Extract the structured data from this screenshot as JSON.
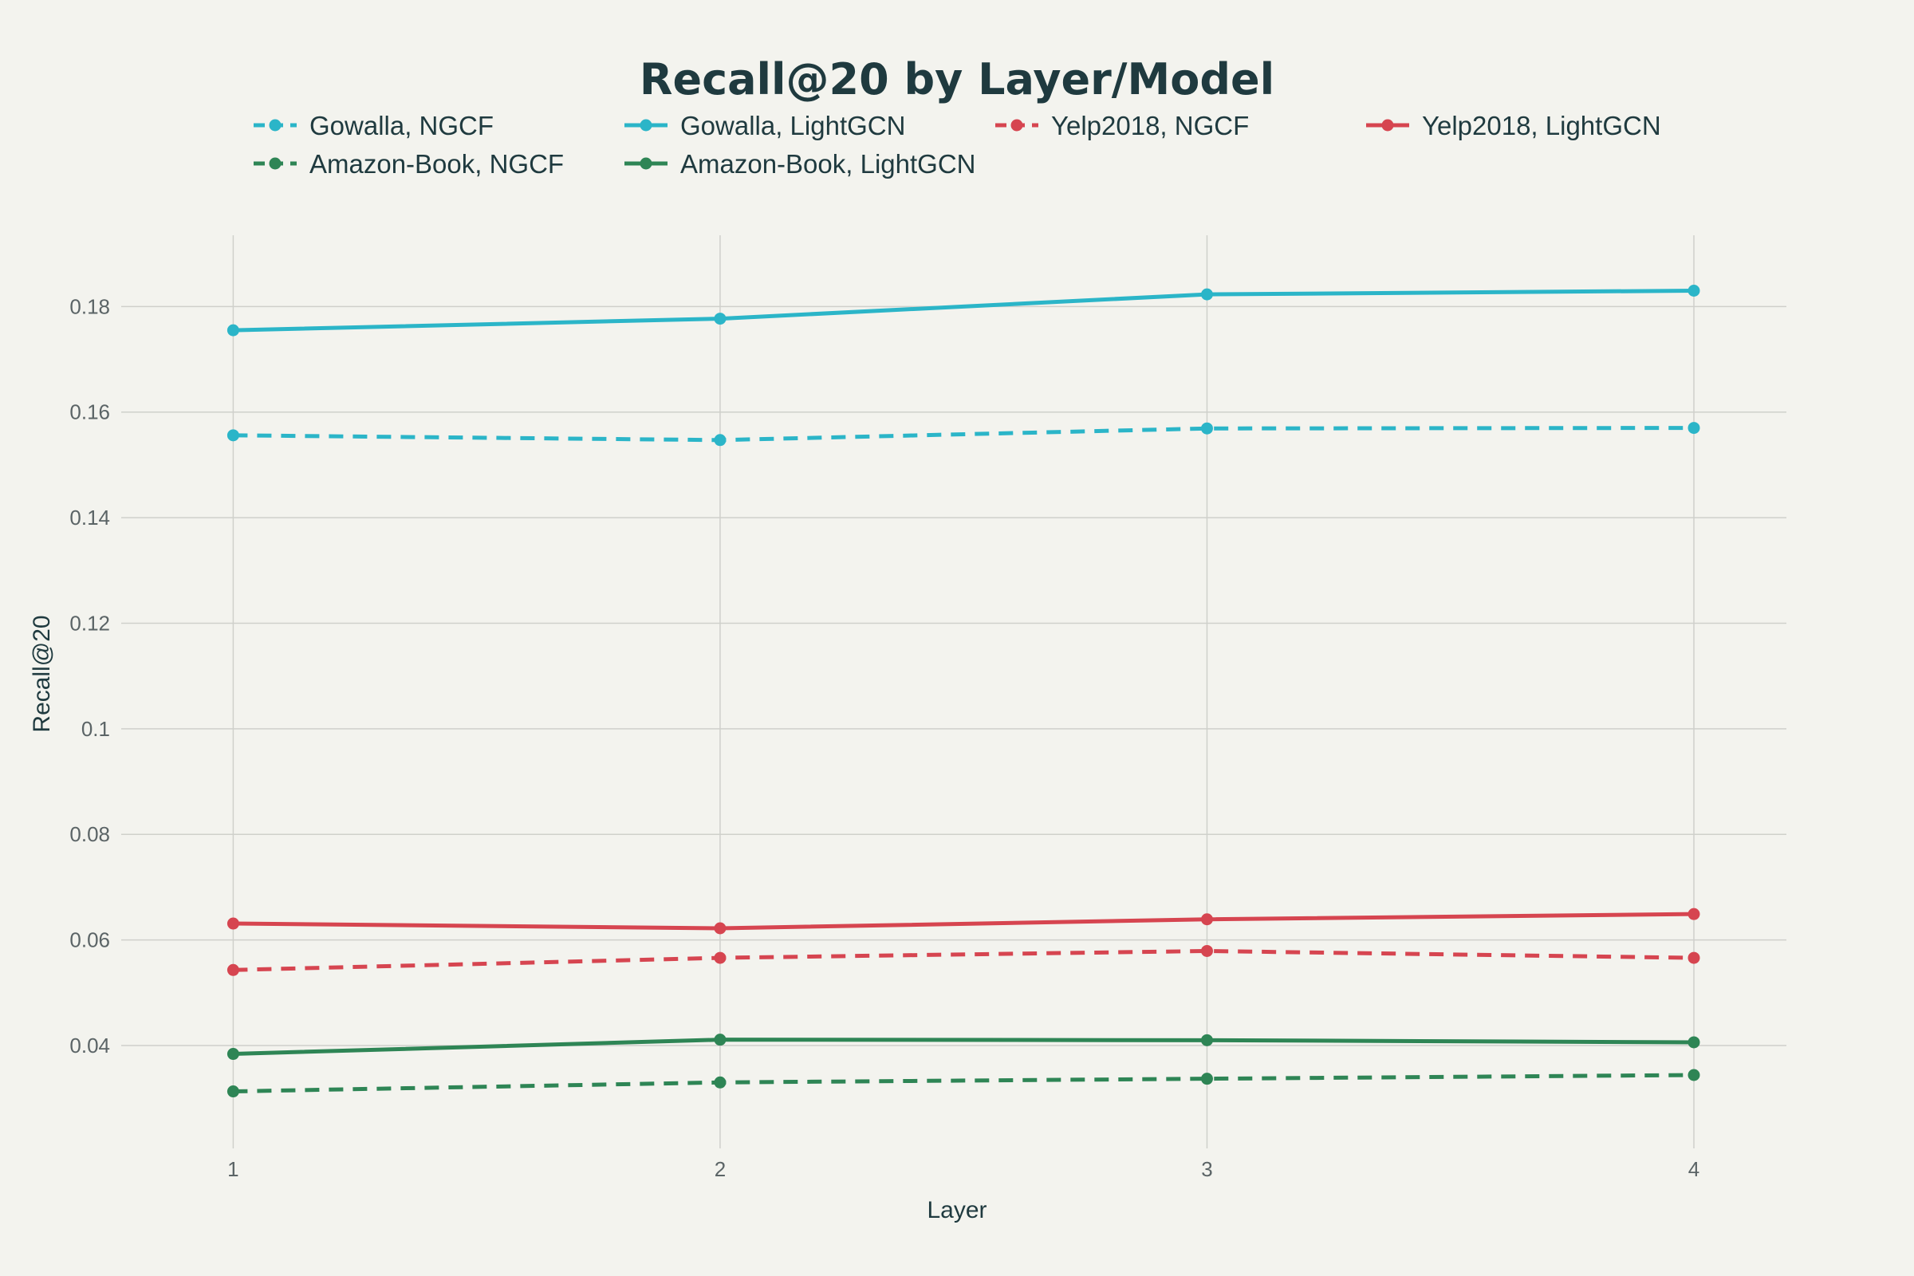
{
  "chart_data": {
    "type": "line",
    "title": "Recall@20 by Layer/Model",
    "xlabel": "Layer",
    "ylabel": "Recall@20",
    "x": [
      1,
      2,
      3,
      4
    ],
    "x_tick_labels": [
      "1",
      "2",
      "3",
      "4"
    ],
    "xlim": [
      0.77,
      4.19
    ],
    "ylim": [
      0.0205,
      0.1935
    ],
    "y_ticks": [
      0.04,
      0.06,
      0.08,
      0.1,
      0.12,
      0.14,
      0.16,
      0.18
    ],
    "y_tick_labels": [
      "0.04",
      "0.06",
      "0.08",
      "0.1",
      "0.12",
      "0.14",
      "0.16",
      "0.18"
    ],
    "grid": true,
    "legend_position": "top",
    "series": [
      {
        "name": "Gowalla, NGCF",
        "values": [
          0.1556,
          0.1547,
          0.1569,
          0.157
        ],
        "color": "#2bb5c8",
        "dash": "dashed"
      },
      {
        "name": "Gowalla, LightGCN",
        "values": [
          0.1755,
          0.1777,
          0.1823,
          0.183
        ],
        "color": "#2bb5c8",
        "dash": "solid"
      },
      {
        "name": "Yelp2018, NGCF",
        "values": [
          0.0543,
          0.0566,
          0.0579,
          0.0566
        ],
        "color": "#d64550",
        "dash": "dashed"
      },
      {
        "name": "Yelp2018, LightGCN",
        "values": [
          0.0631,
          0.0622,
          0.0639,
          0.0649
        ],
        "color": "#d64550",
        "dash": "solid"
      },
      {
        "name": "Amazon-Book, NGCF",
        "values": [
          0.0313,
          0.033,
          0.0337,
          0.0344
        ],
        "color": "#2e8555",
        "dash": "dashed"
      },
      {
        "name": "Amazon-Book, LightGCN",
        "values": [
          0.0384,
          0.0411,
          0.041,
          0.0406
        ],
        "color": "#2e8555",
        "dash": "solid"
      }
    ]
  }
}
